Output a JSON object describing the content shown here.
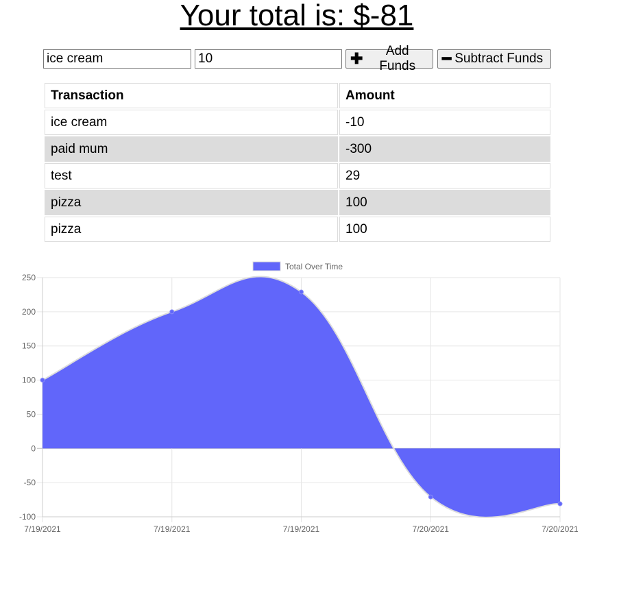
{
  "header": {
    "total_label": "Your total is: $-81"
  },
  "form": {
    "name_value": "ice cream",
    "amount_value": "10",
    "add_label": "Add Funds",
    "subtract_label": "Subtract Funds",
    "add_icon": "plus-icon",
    "subtract_icon": "minus-icon"
  },
  "table": {
    "headers": [
      "Transaction",
      "Amount"
    ],
    "rows": [
      [
        "ice cream",
        "-10"
      ],
      [
        "paid mum",
        "-300"
      ],
      [
        "test",
        "29"
      ],
      [
        "pizza",
        "100"
      ],
      [
        "pizza",
        "100"
      ]
    ]
  },
  "chart_data": {
    "type": "area",
    "legend": [
      "Total Over Time"
    ],
    "legend_position": "top-center",
    "categories": [
      "7/19/2021",
      "7/19/2021",
      "7/19/2021",
      "7/20/2021",
      "7/20/2021"
    ],
    "series": [
      {
        "name": "Total Over Time",
        "values": [
          100,
          200,
          229,
          -71,
          -81
        ]
      }
    ],
    "yticks": [
      250,
      200,
      150,
      100,
      50,
      0,
      -50,
      -100
    ],
    "ylim": [
      -100,
      250
    ],
    "grid": true,
    "fill_color": "#6166fa",
    "line_color": "#dcdcdc"
  }
}
